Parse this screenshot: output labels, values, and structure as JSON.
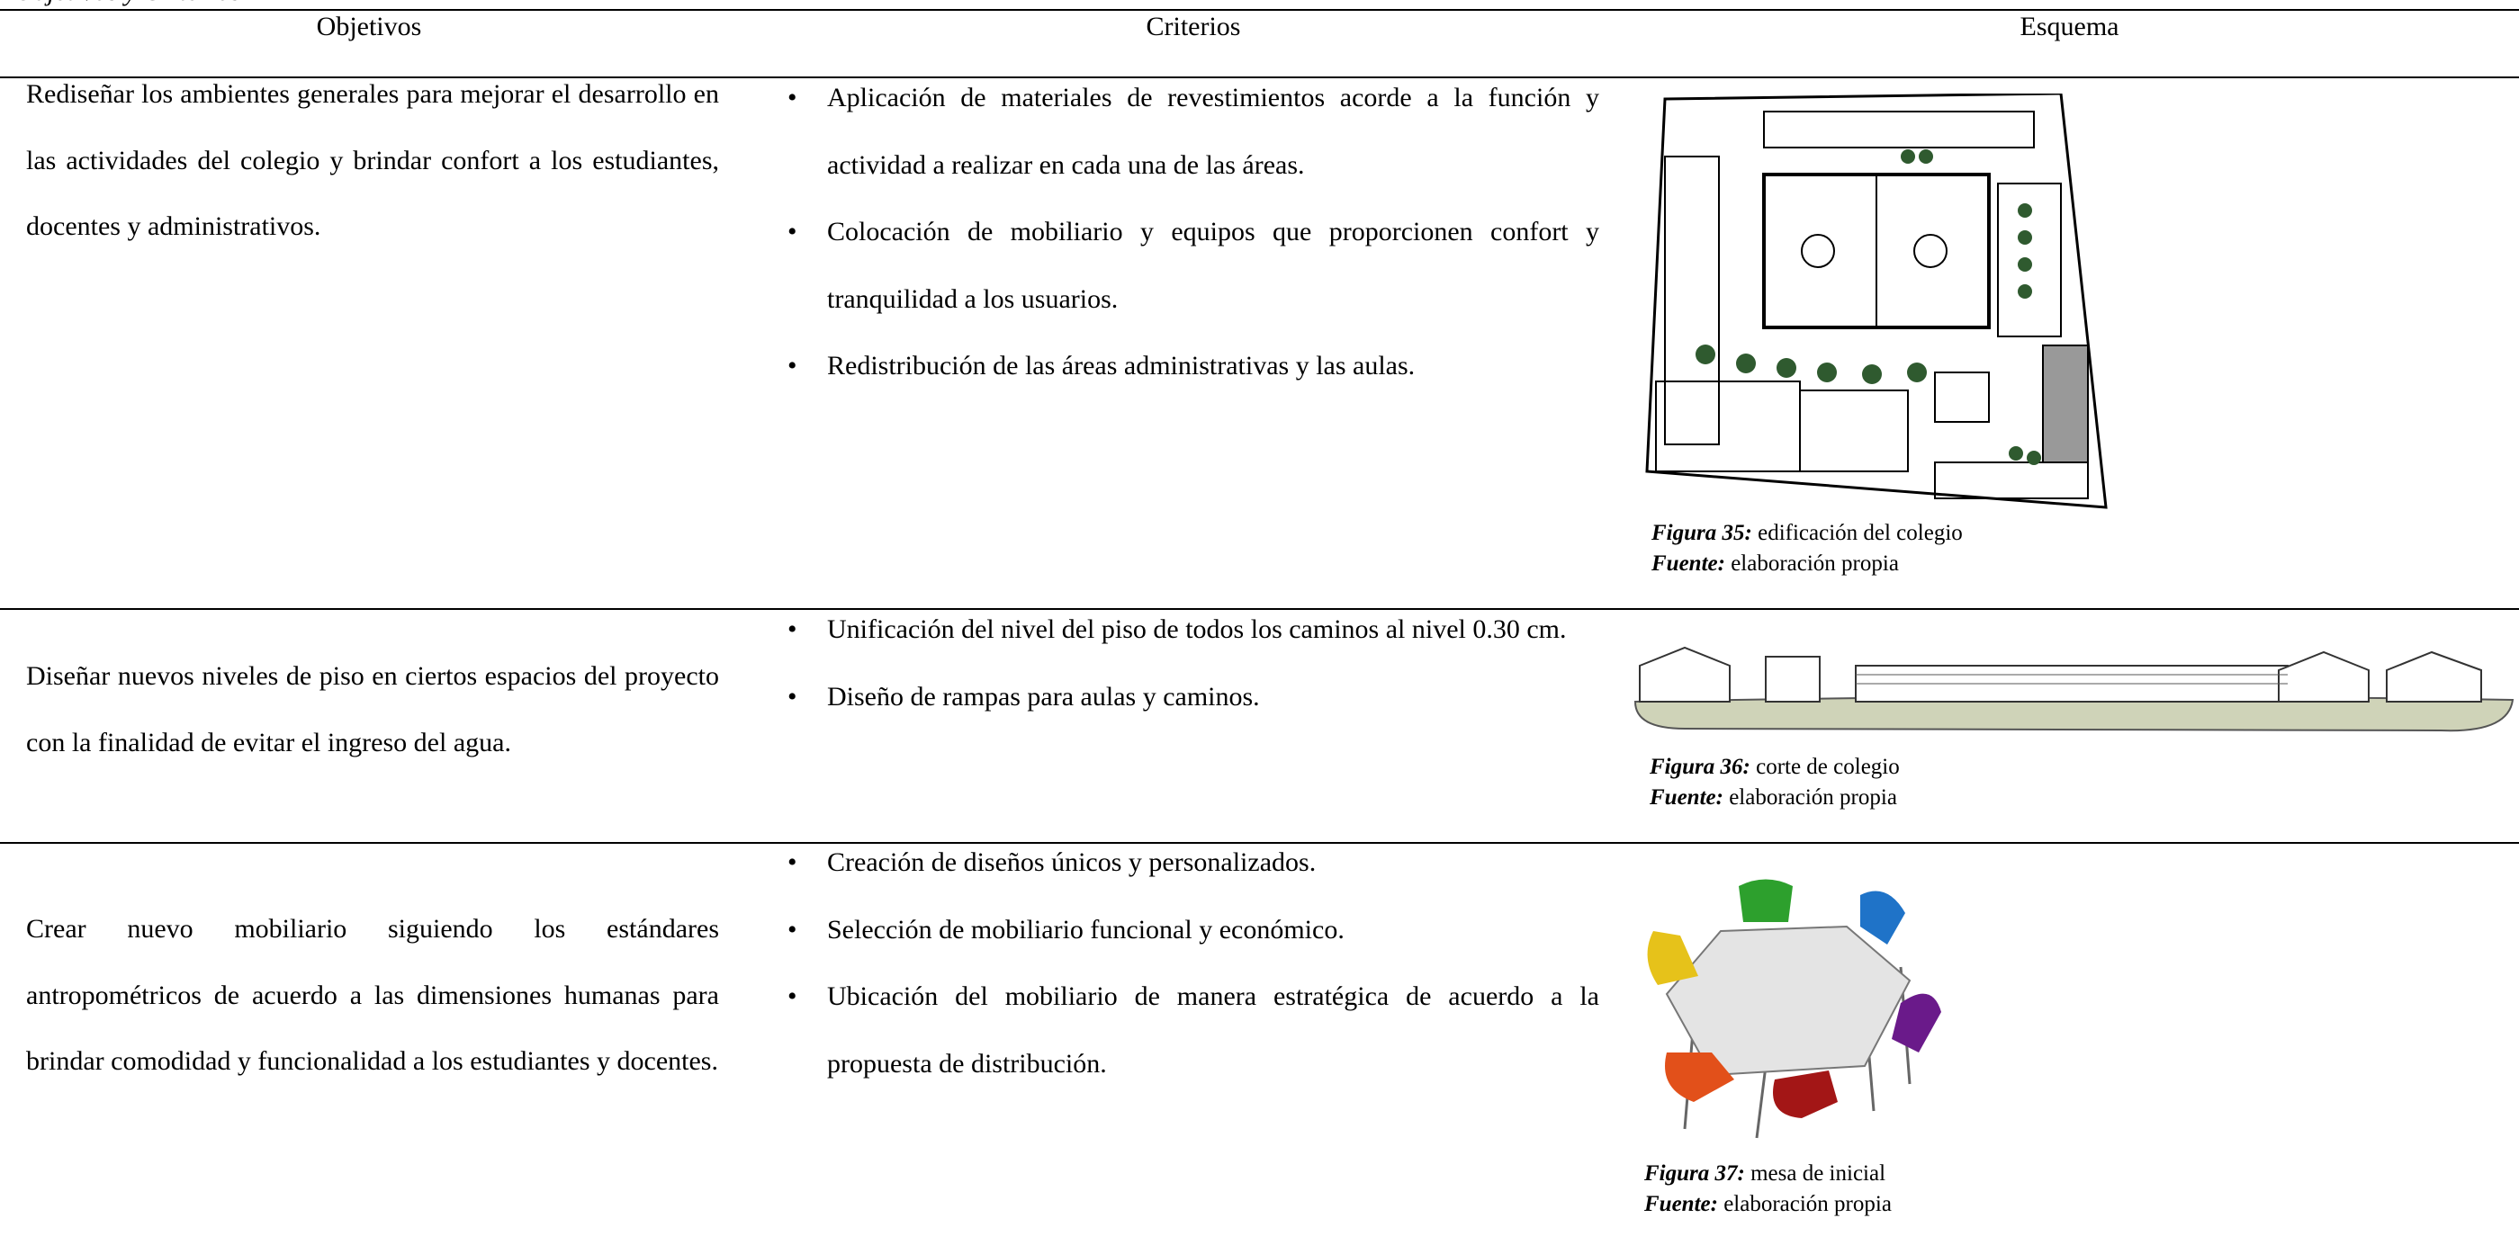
{
  "header": {
    "title": "Objetivos y Criterios"
  },
  "table": {
    "columns": [
      "Objetivos",
      "Criterios",
      "Esquema"
    ],
    "rows": [
      {
        "objective": "Rediseñar los ambientes generales para mejorar el desarrollo en las actividades del colegio y brindar confort a los estudiantes, docentes y administrativos.",
        "criteria": [
          "Aplicación de materiales de revestimientos acorde a la función y actividad a realizar en cada una de las áreas.",
          "Colocación de mobiliario y equipos que proporcionen confort y tranquilidad a los usuarios.",
          "Redistribución de las áreas administrativas y las aulas."
        ],
        "figure": {
          "label": "Figura 35:",
          "caption": "edificación del colegio",
          "source_label": "Fuente:",
          "source": "elaboración propia"
        }
      },
      {
        "objective": "Diseñar nuevos niveles de piso en ciertos espacios del proyecto con la finalidad de evitar el ingreso del agua.",
        "criteria": [
          "Unificación del nivel del piso de todos los caminos al nivel 0.30 cm.",
          "Diseño de rampas para aulas y caminos."
        ],
        "figure": {
          "label": "Figura 36:",
          "caption": "corte de colegio",
          "source_label": "Fuente:",
          "source": "elaboración propia"
        }
      },
      {
        "objective": "Crear nuevo mobiliario siguiendo los estándares antropométricos de acuerdo a las dimensiones humanas para brindar comodidad y funcionalidad a los estudiantes y docentes.",
        "criteria": [
          "Creación de diseños únicos y personalizados.",
          "Selección de mobiliario funcional y económico.",
          "Ubicación del mobiliario de manera estratégica de acuerdo a la propuesta de distribución."
        ],
        "figure": {
          "label": "Figura 37:",
          "caption": "mesa de inicial",
          "source_label": "Fuente:",
          "source": "elaboración propia"
        }
      }
    ]
  }
}
